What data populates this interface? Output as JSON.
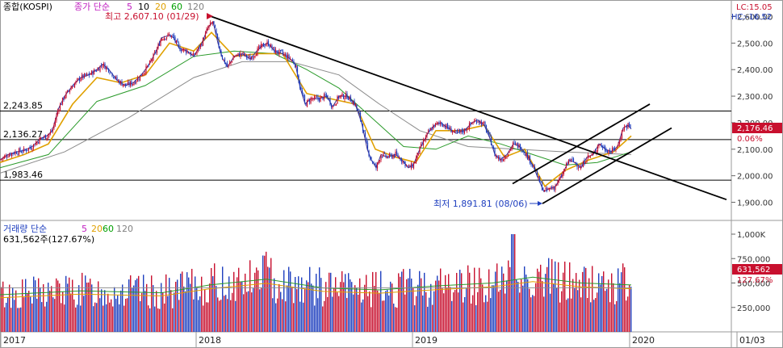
{
  "header": {
    "code_label": "종합(KOSPI)",
    "price_legend": {
      "prefix": "종가 단순",
      "ma": [
        {
          "period": "5",
          "color": "#c020c0"
        },
        {
          "period": "10",
          "color": "#000000"
        },
        {
          "period": "20",
          "color": "#e0a000"
        },
        {
          "period": "60",
          "color": "#00a000"
        },
        {
          "period": "120",
          "color": "#808080"
        }
      ]
    },
    "high_note": "최고 2,607.10 (01/29)",
    "low_note": "최저 1,891.81 (08/06)",
    "lc": "LC:15.05",
    "hc": "HC:-16.52"
  },
  "volume_legend": {
    "prefix": "거래량 단순",
    "ma": [
      {
        "period": "5",
        "color": "#c020c0"
      },
      {
        "period": "20",
        "color": "#e0a000"
      },
      {
        "period": "60",
        "color": "#00a000"
      },
      {
        "period": "120",
        "color": "#808080"
      }
    ],
    "current": "631,562주(127.67%)"
  },
  "hlines": [
    {
      "label": "2,243.85",
      "value": 2243.85
    },
    {
      "label": "2,136.27",
      "value": 2136.27
    },
    {
      "label": "1,983.46",
      "value": 1983.46
    }
  ],
  "current_price_box": {
    "price": "2,176.46",
    "change": "0.06%"
  },
  "current_volume_box": {
    "volume": "631,562",
    "change": "127.67%"
  },
  "colors": {
    "up": "#c8102e",
    "down": "#1f3fbf",
    "trend": "#000000",
    "box_bg": "#c8102e"
  },
  "chart_data": {
    "type": "candlestick",
    "price_axis": {
      "ticks": [
        "2,600.00",
        "2,500.00",
        "2,400.00",
        "2,300.00",
        "2,200.00",
        "2,100.00",
        "2,000.00",
        "1,900.00"
      ],
      "ylim": [
        1860,
        2640
      ]
    },
    "volume_axis": {
      "ticks": [
        "1,000K",
        "750,000",
        "500,000",
        "250,000"
      ],
      "ylim": [
        0,
        1080000
      ]
    },
    "x_axis": {
      "labels": [
        "2017",
        "2018",
        "2019",
        "2020",
        "01/03"
      ]
    },
    "close_path": [
      [
        0,
        2060
      ],
      [
        10,
        2080
      ],
      [
        20,
        2090
      ],
      [
        30,
        2095
      ],
      [
        40,
        2110
      ],
      [
        50,
        2140
      ],
      [
        58,
        2150
      ],
      [
        65,
        2170
      ],
      [
        72,
        2250
      ],
      [
        80,
        2300
      ],
      [
        90,
        2340
      ],
      [
        100,
        2370
      ],
      [
        110,
        2380
      ],
      [
        120,
        2400
      ],
      [
        127,
        2420
      ],
      [
        135,
        2400
      ],
      [
        145,
        2360
      ],
      [
        155,
        2340
      ],
      [
        165,
        2350
      ],
      [
        175,
        2380
      ],
      [
        185,
        2420
      ],
      [
        195,
        2480
      ],
      [
        200,
        2520
      ],
      [
        210,
        2530
      ],
      [
        215,
        2520
      ],
      [
        222,
        2480
      ],
      [
        232,
        2470
      ],
      [
        240,
        2450
      ],
      [
        250,
        2500
      ],
      [
        258,
        2560
      ],
      [
        264,
        2580
      ],
      [
        270,
        2500
      ],
      [
        276,
        2440
      ],
      [
        282,
        2410
      ],
      [
        290,
        2450
      ],
      [
        300,
        2460
      ],
      [
        310,
        2440
      ],
      [
        318,
        2470
      ],
      [
        325,
        2490
      ],
      [
        332,
        2500
      ],
      [
        340,
        2470
      ],
      [
        350,
        2460
      ],
      [
        360,
        2440
      ],
      [
        366,
        2420
      ],
      [
        372,
        2330
      ],
      [
        378,
        2270
      ],
      [
        385,
        2290
      ],
      [
        395,
        2290
      ],
      [
        405,
        2300
      ],
      [
        412,
        2260
      ],
      [
        420,
        2300
      ],
      [
        430,
        2300
      ],
      [
        440,
        2270
      ],
      [
        448,
        2200
      ],
      [
        455,
        2100
      ],
      [
        460,
        2060
      ],
      [
        466,
        2030
      ],
      [
        472,
        2080
      ],
      [
        480,
        2070
      ],
      [
        490,
        2080
      ],
      [
        498,
        2060
      ],
      [
        506,
        2030
      ],
      [
        512,
        2040
      ],
      [
        520,
        2100
      ],
      [
        530,
        2160
      ],
      [
        538,
        2190
      ],
      [
        546,
        2200
      ],
      [
        555,
        2180
      ],
      [
        565,
        2160
      ],
      [
        575,
        2170
      ],
      [
        585,
        2200
      ],
      [
        592,
        2210
      ],
      [
        600,
        2190
      ],
      [
        607,
        2140
      ],
      [
        613,
        2080
      ],
      [
        620,
        2060
      ],
      [
        628,
        2080
      ],
      [
        636,
        2120
      ],
      [
        644,
        2110
      ],
      [
        652,
        2080
      ],
      [
        660,
        2040
      ],
      [
        668,
        1980
      ],
      [
        674,
        1940
      ],
      [
        680,
        1950
      ],
      [
        688,
        1960
      ],
      [
        696,
        2000
      ],
      [
        705,
        2060
      ],
      [
        712,
        2050
      ],
      [
        720,
        2030
      ],
      [
        727,
        2070
      ],
      [
        735,
        2080
      ],
      [
        742,
        2120
      ],
      [
        750,
        2100
      ],
      [
        757,
        2090
      ],
      [
        765,
        2110
      ],
      [
        772,
        2180
      ],
      [
        778,
        2190
      ],
      [
        782,
        2176
      ]
    ],
    "ma20_path": [
      [
        0,
        2050
      ],
      [
        30,
        2080
      ],
      [
        60,
        2120
      ],
      [
        90,
        2270
      ],
      [
        120,
        2370
      ],
      [
        150,
        2350
      ],
      [
        180,
        2380
      ],
      [
        210,
        2500
      ],
      [
        240,
        2470
      ],
      [
        262,
        2540
      ],
      [
        290,
        2450
      ],
      [
        320,
        2460
      ],
      [
        350,
        2460
      ],
      [
        380,
        2310
      ],
      [
        410,
        2290
      ],
      [
        440,
        2270
      ],
      [
        465,
        2100
      ],
      [
        490,
        2070
      ],
      [
        515,
        2050
      ],
      [
        540,
        2170
      ],
      [
        570,
        2170
      ],
      [
        600,
        2190
      ],
      [
        625,
        2070
      ],
      [
        650,
        2100
      ],
      [
        675,
        1960
      ],
      [
        700,
        2020
      ],
      [
        730,
        2060
      ],
      [
        760,
        2090
      ],
      [
        782,
        2150
      ]
    ],
    "ma60_path": [
      [
        0,
        2030
      ],
      [
        60,
        2080
      ],
      [
        120,
        2280
      ],
      [
        180,
        2340
      ],
      [
        240,
        2450
      ],
      [
        290,
        2470
      ],
      [
        340,
        2460
      ],
      [
        380,
        2400
      ],
      [
        420,
        2330
      ],
      [
        460,
        2220
      ],
      [
        500,
        2110
      ],
      [
        540,
        2100
      ],
      [
        580,
        2150
      ],
      [
        620,
        2120
      ],
      [
        660,
        2080
      ],
      [
        700,
        2040
      ],
      [
        740,
        2050
      ],
      [
        782,
        2090
      ]
    ],
    "ma120_path": [
      [
        0,
        2010
      ],
      [
        80,
        2090
      ],
      [
        160,
        2220
      ],
      [
        240,
        2370
      ],
      [
        300,
        2430
      ],
      [
        360,
        2430
      ],
      [
        420,
        2380
      ],
      [
        470,
        2270
      ],
      [
        520,
        2170
      ],
      [
        580,
        2110
      ],
      [
        640,
        2100
      ],
      [
        700,
        2090
      ],
      [
        782,
        2080
      ]
    ],
    "trendlines": [
      {
        "x1": 262,
        "y1": 2600,
        "x2": 900,
        "y2": 1910
      },
      {
        "x1": 635,
        "y1": 1970,
        "x2": 805,
        "y2": 2270
      },
      {
        "x1": 672,
        "y1": 1895,
        "x2": 832,
        "y2": 2180
      }
    ],
    "volume_ma_path": [
      [
        0,
        380000
      ],
      [
        100,
        420000
      ],
      [
        200,
        400000
      ],
      [
        260,
        480000
      ],
      [
        330,
        540000
      ],
      [
        400,
        450000
      ],
      [
        470,
        430000
      ],
      [
        540,
        470000
      ],
      [
        610,
        500000
      ],
      [
        660,
        560000
      ],
      [
        720,
        500000
      ],
      [
        782,
        480000
      ]
    ],
    "volume_hline": 450000
  }
}
